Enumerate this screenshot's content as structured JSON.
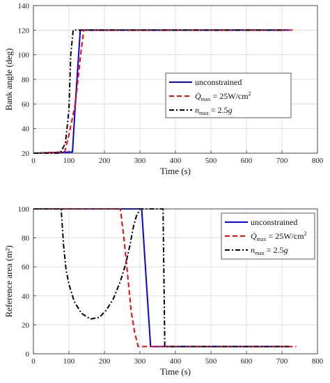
{
  "chart_data": [
    {
      "type": "line",
      "xlabel": "Time (s)",
      "ylabel": "Bank angle (deg)",
      "xlim": [
        0,
        800
      ],
      "ylim": [
        20,
        140
      ],
      "xticks": [
        0,
        100,
        200,
        300,
        400,
        500,
        600,
        700,
        800
      ],
      "yticks": [
        20,
        40,
        60,
        80,
        100,
        120,
        140
      ],
      "grid": true,
      "legend_position": "center-right",
      "series": [
        {
          "name": "unconstrained",
          "color": "#0000ff",
          "dash": "solid",
          "x": [
            0,
            110,
            118,
            132,
            720
          ],
          "y": [
            20,
            21,
            60,
            120,
            120
          ]
        },
        {
          "name": "Q̇max = 25W/cm²",
          "color": "#ff0000",
          "dash": "dashed",
          "x": [
            0,
            88,
            100,
            118,
            133,
            142,
            730
          ],
          "y": [
            20,
            21,
            35,
            60,
            100,
            120,
            120
          ]
        },
        {
          "name": "nmax = 2.5g",
          "color": "#000000",
          "dash": "dashdot",
          "x": [
            0,
            75,
            90,
            100,
            105,
            112,
            715
          ],
          "y": [
            20,
            20,
            28,
            55,
            100,
            120,
            120
          ]
        }
      ]
    },
    {
      "type": "line",
      "xlabel": "Time (s)",
      "ylabel": "Reference area (m²)",
      "xlim": [
        0,
        800
      ],
      "ylim": [
        0,
        100
      ],
      "xticks": [
        0,
        100,
        200,
        300,
        400,
        500,
        600,
        700,
        800
      ],
      "yticks": [
        0,
        20,
        40,
        60,
        80,
        100
      ],
      "grid": true,
      "legend_position": "top-right",
      "series": [
        {
          "name": "unconstrained",
          "color": "#0000ff",
          "dash": "solid",
          "x": [
            0,
            305,
            318,
            330,
            720
          ],
          "y": [
            100,
            100,
            50,
            5,
            5
          ]
        },
        {
          "name": "Q̇max = 25W/cm²",
          "color": "#ff0000",
          "dash": "dashed",
          "x": [
            0,
            245,
            255,
            265,
            275,
            285,
            295,
            310,
            315,
            740
          ],
          "y": [
            100,
            100,
            80,
            55,
            30,
            15,
            5,
            5,
            5,
            5
          ]
        },
        {
          "name": "nmax = 2.5g",
          "color": "#000000",
          "dash": "dashdot",
          "x": [
            0,
            78,
            85,
            92,
            100,
            115,
            135,
            160,
            185,
            205,
            225,
            245,
            260,
            272,
            282,
            290,
            300,
            365,
            370,
            720
          ],
          "y": [
            100,
            100,
            75,
            58,
            48,
            36,
            28,
            24,
            25,
            30,
            38,
            50,
            62,
            75,
            88,
            95,
            100,
            100,
            5,
            5
          ]
        }
      ]
    }
  ],
  "legend": {
    "unconstrained": "unconstrained",
    "q_symbol": "Q̇",
    "q_sub": "max",
    "q_rest": " = 25W/cm",
    "q_sup": "2",
    "n_symbol": "n",
    "n_sub": "max",
    "n_rest": " = 2.5",
    "n_unit": "g"
  }
}
